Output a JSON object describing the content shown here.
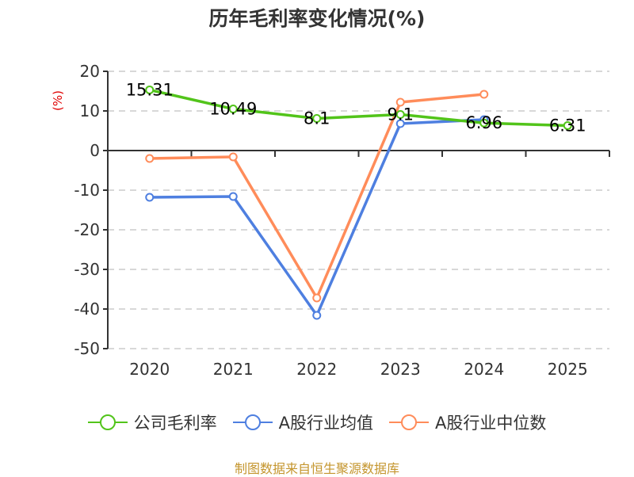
{
  "title": "历年毛利率变化情况(%)",
  "source": "制图数据来自恒生聚源数据库",
  "chart_data": {
    "type": "line",
    "title": "历年毛利率变化情况(%)",
    "xlabel": "",
    "ylabel": "(%)",
    "ylim": [
      -50,
      20
    ],
    "yticks": [
      20,
      10,
      0,
      -10,
      -20,
      -30,
      -40,
      -50
    ],
    "grid": true,
    "legend_position": "bottom",
    "categories": [
      "2020",
      "2021",
      "2022",
      "2023",
      "2024",
      "2025"
    ],
    "series": [
      {
        "name": "公司毛利率",
        "color": "#52c41a",
        "values": [
          15.31,
          10.49,
          8.1,
          9.1,
          6.96,
          6.31
        ],
        "labels": [
          "15.31",
          "10.49",
          "8.1",
          "9.1",
          "6.96",
          "6.31"
        ]
      },
      {
        "name": "A股行业均值",
        "color": "#4e7fe0",
        "values": [
          -11.8,
          -11.6,
          -41.6,
          6.8,
          7.8,
          null
        ]
      },
      {
        "name": "A股行业中位数",
        "color": "#ff8c5a",
        "values": [
          -2.0,
          -1.6,
          -37.2,
          12.2,
          14.2,
          null
        ]
      }
    ]
  },
  "legend": [
    {
      "label": "公司毛利率",
      "color": "#52c41a"
    },
    {
      "label": "A股行业均值",
      "color": "#4e7fe0"
    },
    {
      "label": "A股行业中位数",
      "color": "#ff8c5a"
    }
  ]
}
